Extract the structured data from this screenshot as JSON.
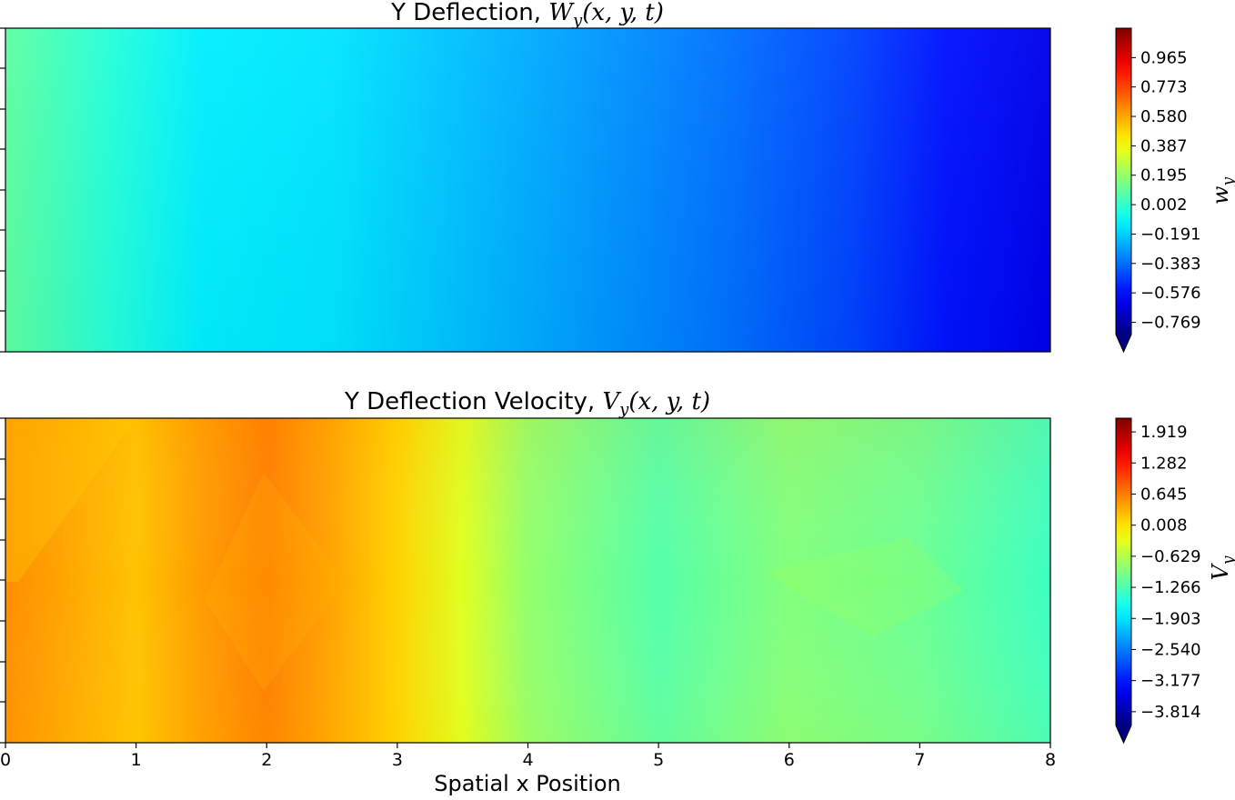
{
  "figure": {
    "xlabel": "Spatial x Position"
  },
  "chart_data": [
    {
      "type": "heatmap",
      "title_prefix": "Y Deflection, ",
      "title_math": "W",
      "title_sub": "y",
      "title_args": "(x, y, t)",
      "colormap": "jet",
      "x_range": [
        0,
        8
      ],
      "colorbar": {
        "label_main": "w",
        "label_sub": "y",
        "range": [
          -0.962,
          1.158
        ],
        "extend": "min",
        "ticks": [
          "0.965",
          "0.773",
          "0.580",
          "0.387",
          "0.195",
          "0.002",
          "−0.191",
          "−0.383",
          "−0.576",
          "−0.769"
        ],
        "tick_values": [
          0.965,
          0.773,
          0.58,
          0.387,
          0.195,
          0.002,
          -0.191,
          -0.383,
          -0.576,
          -0.769
        ]
      },
      "profile_x": [
        0,
        0.8,
        1.5,
        2.5,
        3.5,
        4.5,
        5.5,
        6.5,
        7.2,
        8.0
      ],
      "profile_value": [
        0.03,
        -0.09,
        -0.2,
        -0.22,
        -0.3,
        -0.38,
        -0.46,
        -0.56,
        -0.66,
        -0.74
      ]
    },
    {
      "type": "heatmap",
      "title_prefix": "Y Deflection Velocity, ",
      "title_math": "V",
      "title_sub": "y",
      "title_args": "(x, y, t)",
      "colormap": "jet",
      "x_range": [
        0,
        8
      ],
      "x_ticks": [
        "0",
        "1",
        "2",
        "3",
        "4",
        "5",
        "6",
        "7",
        "8"
      ],
      "x_tick_values": [
        0,
        1,
        2,
        3,
        4,
        5,
        6,
        7,
        8
      ],
      "colorbar": {
        "label_main": "V",
        "label_sub": "y",
        "range": [
          -4.45,
          2.2
        ],
        "extend": "min",
        "ticks": [
          "1.919",
          "1.282",
          "0.645",
          "0.008",
          "−0.629",
          "−1.266",
          "−1.903",
          "−2.540",
          "−3.177",
          "−3.814"
        ],
        "tick_values": [
          1.919,
          1.282,
          0.645,
          0.008,
          -0.629,
          -1.266,
          -1.903,
          -2.54,
          -3.177,
          -3.814
        ]
      },
      "profile_x": [
        0,
        1,
        1.5,
        2,
        2.5,
        3,
        3.5,
        4,
        5,
        6,
        7,
        8
      ],
      "profile_value": [
        0.45,
        0.1,
        0.35,
        0.55,
        0.3,
        0.0,
        -0.5,
        -1.0,
        -1.4,
        -1.1,
        -1.25,
        -1.55
      ]
    }
  ]
}
